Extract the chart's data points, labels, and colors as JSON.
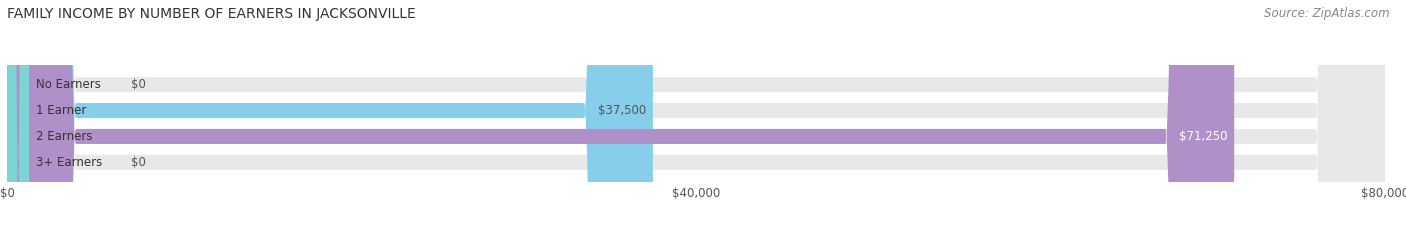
{
  "title": "FAMILY INCOME BY NUMBER OF EARNERS IN JACKSONVILLE",
  "source": "Source: ZipAtlas.com",
  "categories": [
    "No Earners",
    "1 Earner",
    "2 Earners",
    "3+ Earners"
  ],
  "values": [
    0,
    37500,
    71250,
    0
  ],
  "bar_colors": [
    "#f08080",
    "#87CEEB",
    "#b090c8",
    "#7dd4d4"
  ],
  "bar_background": "#e8e8e8",
  "value_labels": [
    "$0",
    "$37,500",
    "$71,250",
    "$0"
  ],
  "value_label_colors": [
    "#555555",
    "#555555",
    "#ffffff",
    "#555555"
  ],
  "xlim": [
    0,
    80000
  ],
  "xticklabels": [
    "$0",
    "$40,000",
    "$80,000"
  ],
  "xtick_values": [
    0,
    40000,
    80000
  ],
  "title_fontsize": 10,
  "source_fontsize": 8.5,
  "label_fontsize": 8.5,
  "bar_height": 0.58,
  "background_color": "#ffffff"
}
